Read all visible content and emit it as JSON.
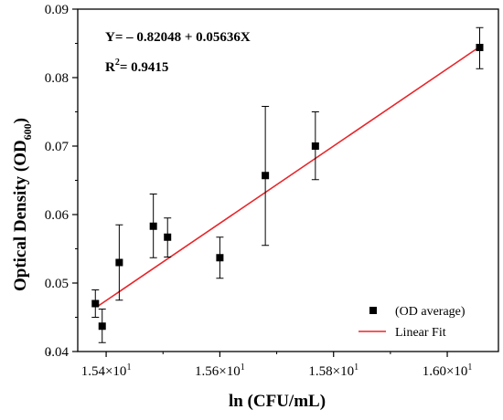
{
  "chart_data": {
    "type": "scatter",
    "xlabel": "ln (CFU/mL)",
    "ylabel_main": "Optical Density (OD",
    "ylabel_sub": "600",
    "ylabel_close": ")",
    "xlim": [
      15.35,
      16.09
    ],
    "ylim": [
      0.04,
      0.09
    ],
    "x_ticks": [
      15.4,
      15.6,
      15.8,
      16.0
    ],
    "x_tick_labels": [
      {
        "base": "1.54×10",
        "exp": "1"
      },
      {
        "base": "1.56×10",
        "exp": "1"
      },
      {
        "base": "1.58×10",
        "exp": "1"
      },
      {
        "base": "1.60×10",
        "exp": "1"
      }
    ],
    "y_ticks": [
      0.04,
      0.05,
      0.06,
      0.07,
      0.08,
      0.09
    ],
    "y_tick_labels": [
      "0.04",
      "0.05",
      "0.06",
      "0.07",
      "0.08",
      "0.09"
    ],
    "grid": false,
    "legend_position": "bottom-right",
    "series": [
      {
        "name": "(OD average)",
        "kind": "scatter",
        "marker": "square",
        "color": "#000000",
        "points": [
          {
            "x": 15.381,
            "y": 0.047,
            "err_lo": 0.045,
            "err_hi": 0.049
          },
          {
            "x": 15.393,
            "y": 0.0437,
            "err_lo": 0.0413,
            "err_hi": 0.0462
          },
          {
            "x": 15.423,
            "y": 0.053,
            "err_lo": 0.0475,
            "err_hi": 0.0585
          },
          {
            "x": 15.483,
            "y": 0.0583,
            "err_lo": 0.0537,
            "err_hi": 0.063
          },
          {
            "x": 15.508,
            "y": 0.0567,
            "err_lo": 0.0538,
            "err_hi": 0.0595
          },
          {
            "x": 15.6,
            "y": 0.0537,
            "err_lo": 0.0507,
            "err_hi": 0.0567
          },
          {
            "x": 15.68,
            "y": 0.0657,
            "err_lo": 0.0555,
            "err_hi": 0.0758
          },
          {
            "x": 15.768,
            "y": 0.07,
            "err_lo": 0.0651,
            "err_hi": 0.075
          },
          {
            "x": 16.057,
            "y": 0.0844,
            "err_lo": 0.0813,
            "err_hi": 0.0873
          }
        ]
      },
      {
        "name": "Linear Fit",
        "kind": "line",
        "color": "#e8252a",
        "points": [
          {
            "x": 15.385,
            "y": 0.0466
          },
          {
            "x": 16.057,
            "y": 0.0845
          }
        ]
      }
    ],
    "annotations": {
      "equation": "Y= – 0.82048 + 0.05636X",
      "r2_base": "R",
      "r2_exp": "2",
      "r2_value": "= 0.9415"
    }
  }
}
